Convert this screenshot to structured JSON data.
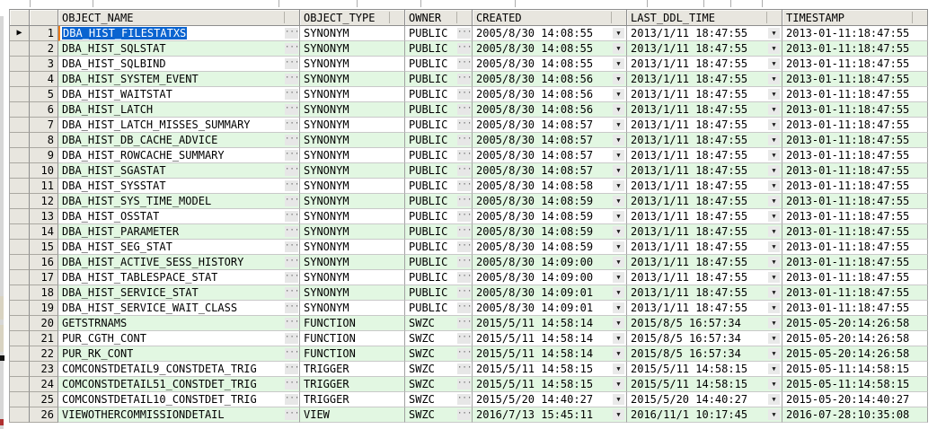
{
  "grid": {
    "columns": [
      {
        "key": "object_name",
        "label": "OBJECT_NAME"
      },
      {
        "key": "object_type",
        "label": "OBJECT_TYPE"
      },
      {
        "key": "owner",
        "label": "OWNER"
      },
      {
        "key": "created",
        "label": "CREATED"
      },
      {
        "key": "last_ddl_time",
        "label": "LAST_DDL_TIME"
      },
      {
        "key": "timestamp",
        "label": "TIMESTAMP"
      }
    ],
    "icons": {
      "row_indicator": "▶",
      "ellipsis": "···",
      "dropdown": "▼"
    },
    "colors": {
      "selection_blue": "#0a64d0",
      "focus_border_orange": "#ef7d1a",
      "stripe_green": "#e2f7e2",
      "header_gray": "#e8e6df"
    },
    "selection": {
      "row": 1,
      "column": "OBJECT_NAME",
      "value": "DBA_HIST_FILESTATXS"
    },
    "rows": [
      {
        "num": 1,
        "selected": true,
        "object_name": "DBA_HIST_FILESTATXS",
        "object_type": "SYNONYM",
        "owner": "PUBLIC",
        "created": "2005/8/30 14:08:55",
        "last_ddl_time": "2013/1/11 18:47:55",
        "timestamp": "2013-01-11:18:47:55"
      },
      {
        "num": 2,
        "object_name": "DBA_HIST_SQLSTAT",
        "object_type": "SYNONYM",
        "owner": "PUBLIC",
        "created": "2005/8/30 14:08:55",
        "last_ddl_time": "2013/1/11 18:47:55",
        "timestamp": "2013-01-11:18:47:55"
      },
      {
        "num": 3,
        "object_name": "DBA_HIST_SQLBIND",
        "object_type": "SYNONYM",
        "owner": "PUBLIC",
        "created": "2005/8/30 14:08:55",
        "last_ddl_time": "2013/1/11 18:47:55",
        "timestamp": "2013-01-11:18:47:55"
      },
      {
        "num": 4,
        "object_name": "DBA_HIST_SYSTEM_EVENT",
        "object_type": "SYNONYM",
        "owner": "PUBLIC",
        "created": "2005/8/30 14:08:56",
        "last_ddl_time": "2013/1/11 18:47:55",
        "timestamp": "2013-01-11:18:47:55"
      },
      {
        "num": 5,
        "object_name": "DBA_HIST_WAITSTAT",
        "object_type": "SYNONYM",
        "owner": "PUBLIC",
        "created": "2005/8/30 14:08:56",
        "last_ddl_time": "2013/1/11 18:47:55",
        "timestamp": "2013-01-11:18:47:55"
      },
      {
        "num": 6,
        "object_name": "DBA_HIST_LATCH",
        "object_type": "SYNONYM",
        "owner": "PUBLIC",
        "created": "2005/8/30 14:08:56",
        "last_ddl_time": "2013/1/11 18:47:55",
        "timestamp": "2013-01-11:18:47:55"
      },
      {
        "num": 7,
        "object_name": "DBA_HIST_LATCH_MISSES_SUMMARY",
        "object_type": "SYNONYM",
        "owner": "PUBLIC",
        "created": "2005/8/30 14:08:57",
        "last_ddl_time": "2013/1/11 18:47:55",
        "timestamp": "2013-01-11:18:47:55"
      },
      {
        "num": 8,
        "object_name": "DBA_HIST_DB_CACHE_ADVICE",
        "object_type": "SYNONYM",
        "owner": "PUBLIC",
        "created": "2005/8/30 14:08:57",
        "last_ddl_time": "2013/1/11 18:47:55",
        "timestamp": "2013-01-11:18:47:55"
      },
      {
        "num": 9,
        "object_name": "DBA_HIST_ROWCACHE_SUMMARY",
        "object_type": "SYNONYM",
        "owner": "PUBLIC",
        "created": "2005/8/30 14:08:57",
        "last_ddl_time": "2013/1/11 18:47:55",
        "timestamp": "2013-01-11:18:47:55"
      },
      {
        "num": 10,
        "object_name": "DBA_HIST_SGASTAT",
        "object_type": "SYNONYM",
        "owner": "PUBLIC",
        "created": "2005/8/30 14:08:57",
        "last_ddl_time": "2013/1/11 18:47:55",
        "timestamp": "2013-01-11:18:47:55"
      },
      {
        "num": 11,
        "object_name": "DBA_HIST_SYSSTAT",
        "object_type": "SYNONYM",
        "owner": "PUBLIC",
        "created": "2005/8/30 14:08:58",
        "last_ddl_time": "2013/1/11 18:47:55",
        "timestamp": "2013-01-11:18:47:55"
      },
      {
        "num": 12,
        "object_name": "DBA_HIST_SYS_TIME_MODEL",
        "object_type": "SYNONYM",
        "owner": "PUBLIC",
        "created": "2005/8/30 14:08:59",
        "last_ddl_time": "2013/1/11 18:47:55",
        "timestamp": "2013-01-11:18:47:55"
      },
      {
        "num": 13,
        "object_name": "DBA_HIST_OSSTAT",
        "object_type": "SYNONYM",
        "owner": "PUBLIC",
        "created": "2005/8/30 14:08:59",
        "last_ddl_time": "2013/1/11 18:47:55",
        "timestamp": "2013-01-11:18:47:55"
      },
      {
        "num": 14,
        "object_name": "DBA_HIST_PARAMETER",
        "object_type": "SYNONYM",
        "owner": "PUBLIC",
        "created": "2005/8/30 14:08:59",
        "last_ddl_time": "2013/1/11 18:47:55",
        "timestamp": "2013-01-11:18:47:55"
      },
      {
        "num": 15,
        "object_name": "DBA_HIST_SEG_STAT",
        "object_type": "SYNONYM",
        "owner": "PUBLIC",
        "created": "2005/8/30 14:08:59",
        "last_ddl_time": "2013/1/11 18:47:55",
        "timestamp": "2013-01-11:18:47:55"
      },
      {
        "num": 16,
        "object_name": "DBA_HIST_ACTIVE_SESS_HISTORY",
        "object_type": "SYNONYM",
        "owner": "PUBLIC",
        "created": "2005/8/30 14:09:00",
        "last_ddl_time": "2013/1/11 18:47:55",
        "timestamp": "2013-01-11:18:47:55"
      },
      {
        "num": 17,
        "object_name": "DBA_HIST_TABLESPACE_STAT",
        "object_type": "SYNONYM",
        "owner": "PUBLIC",
        "created": "2005/8/30 14:09:00",
        "last_ddl_time": "2013/1/11 18:47:55",
        "timestamp": "2013-01-11:18:47:55"
      },
      {
        "num": 18,
        "object_name": "DBA_HIST_SERVICE_STAT",
        "object_type": "SYNONYM",
        "owner": "PUBLIC",
        "created": "2005/8/30 14:09:01",
        "last_ddl_time": "2013/1/11 18:47:55",
        "timestamp": "2013-01-11:18:47:55"
      },
      {
        "num": 19,
        "object_name": "DBA_HIST_SERVICE_WAIT_CLASS",
        "object_type": "SYNONYM",
        "owner": "PUBLIC",
        "created": "2005/8/30 14:09:01",
        "last_ddl_time": "2013/1/11 18:47:55",
        "timestamp": "2013-01-11:18:47:55"
      },
      {
        "num": 20,
        "object_name": "GETSTRNAMS",
        "object_type": "FUNCTION",
        "owner": "SWZC",
        "created": "2015/5/11 14:58:14",
        "last_ddl_time": "2015/8/5 16:57:34",
        "timestamp": "2015-05-20:14:26:58"
      },
      {
        "num": 21,
        "object_name": "PUR_CGTH_CONT",
        "object_type": "FUNCTION",
        "owner": "SWZC",
        "created": "2015/5/11 14:58:14",
        "last_ddl_time": "2015/8/5 16:57:34",
        "timestamp": "2015-05-20:14:26:58"
      },
      {
        "num": 22,
        "object_name": "PUR_RK_CONT",
        "object_type": "FUNCTION",
        "owner": "SWZC",
        "created": "2015/5/11 14:58:14",
        "last_ddl_time": "2015/8/5 16:57:34",
        "timestamp": "2015-05-20:14:26:58"
      },
      {
        "num": 23,
        "object_name": "COMCONSTDETAIL9_CONSTDETA_TRIG",
        "object_type": "TRIGGER",
        "owner": "SWZC",
        "created": "2015/5/11 14:58:15",
        "last_ddl_time": "2015/5/11 14:58:15",
        "timestamp": "2015-05-11:14:58:15"
      },
      {
        "num": 24,
        "object_name": "COMCONSTDETAIL51_CONSTDET_TRIG",
        "object_type": "TRIGGER",
        "owner": "SWZC",
        "created": "2015/5/11 14:58:15",
        "last_ddl_time": "2015/5/11 14:58:15",
        "timestamp": "2015-05-11:14:58:15"
      },
      {
        "num": 25,
        "object_name": "COMCONSTDETAIL10_CONSTDET_TRIG",
        "object_type": "TRIGGER",
        "owner": "SWZC",
        "created": "2015/5/20 14:40:27",
        "last_ddl_time": "2015/5/20 14:40:27",
        "timestamp": "2015-05-20:14:40:27"
      },
      {
        "num": 26,
        "object_name": "VIEWOTHERCOMMISSIONDETAIL",
        "object_type": "VIEW",
        "owner": "SWZC",
        "created": "2016/7/13 15:45:11",
        "last_ddl_time": "2016/11/1 10:17:45",
        "timestamp": "2016-07-28:10:35:08"
      }
    ]
  }
}
